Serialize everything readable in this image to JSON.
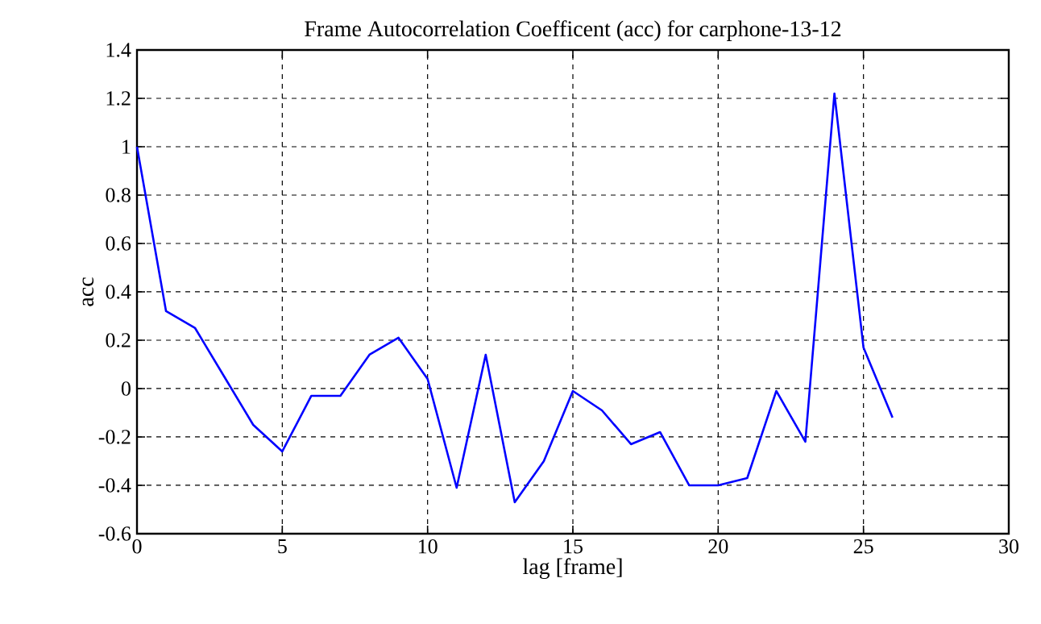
{
  "chart_data": {
    "type": "line",
    "title": "Frame Autocorrelation Coefficent (acc) for carphone-13-12",
    "xlabel": "lag [frame]",
    "ylabel": "acc",
    "x": [
      0,
      1,
      2,
      3,
      4,
      5,
      6,
      7,
      8,
      9,
      10,
      11,
      12,
      13,
      14,
      15,
      16,
      17,
      18,
      19,
      20,
      21,
      22,
      23,
      24,
      25,
      26
    ],
    "series": [
      {
        "color": "#0000ff",
        "values": [
          1.0,
          0.32,
          0.25,
          0.05,
          -0.15,
          -0.26,
          -0.03,
          -0.03,
          0.14,
          0.21,
          0.04,
          -0.41,
          0.14,
          -0.47,
          -0.3,
          -0.01,
          -0.09,
          -0.23,
          -0.18,
          -0.4,
          -0.4,
          -0.37,
          -0.01,
          -0.22,
          1.22,
          0.17,
          -0.12
        ]
      }
    ],
    "xlim": [
      0,
      30
    ],
    "ylim": [
      -0.6,
      1.4
    ],
    "xticks": [
      0,
      5,
      10,
      15,
      20,
      25,
      30
    ],
    "yticks": [
      -0.6,
      -0.4,
      -0.2,
      0,
      0.2,
      0.4,
      0.6,
      0.8,
      1,
      1.2,
      1.4
    ],
    "grid": true,
    "line_style": "solid",
    "marker": "none"
  }
}
